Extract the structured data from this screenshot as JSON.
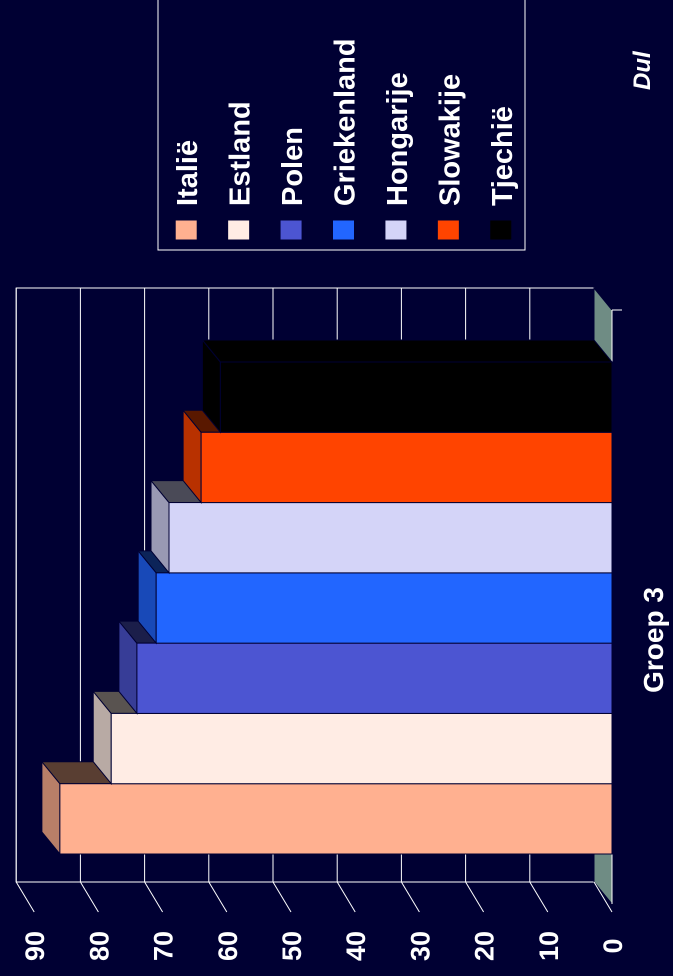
{
  "chart_data": {
    "type": "bar",
    "orientation": "rotated",
    "title": "",
    "xlabel": "Groep 3",
    "ylabel": "",
    "ylim": [
      0,
      90
    ],
    "yticks": [
      "0",
      "10",
      "20",
      "30",
      "40",
      "50",
      "60",
      "70",
      "80",
      "90"
    ],
    "grid": true,
    "three_d": true,
    "legend_position": "top-right",
    "series": [
      {
        "name": "Italië",
        "value": 86,
        "color": "#ffb090"
      },
      {
        "name": "Estland",
        "value": 78,
        "color": "#ffece4"
      },
      {
        "name": "Polen",
        "value": 74,
        "color": "#4c55d2"
      },
      {
        "name": "Griekenland",
        "value": 71,
        "color": "#2266ff"
      },
      {
        "name": "Hongarije",
        "value": 69,
        "color": "#d4d4f8"
      },
      {
        "name": "Slowakije",
        "value": 64,
        "color": "#ff4400"
      },
      {
        "name": "Tjechië",
        "value": 61,
        "color": "#000000"
      }
    ]
  },
  "brand_text": "Dul"
}
